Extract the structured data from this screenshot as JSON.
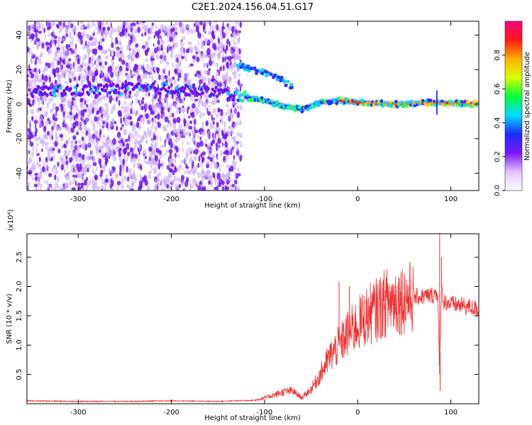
{
  "chart_data": [
    {
      "type": "heatmap",
      "title": "C2E1.2024.156.04.51.G17",
      "xlabel": "Height of straight line (km)",
      "ylabel": "Frequency (Hz)",
      "xlim": [
        -355,
        130
      ],
      "ylim": [
        -50,
        48
      ],
      "x_ticks": [
        -300,
        -200,
        -100,
        0,
        100
      ],
      "y_ticks": [
        -40,
        -20,
        0,
        20,
        40
      ],
      "colorbar": {
        "label": "Normalized spectral amplitude",
        "range": [
          0.0,
          1.0
        ],
        "ticks": [
          "0.0",
          "0.2",
          "0.4",
          "0.6",
          "0.8"
        ],
        "colors": [
          "#ffffff",
          "#e3c2ff",
          "#7a16ff",
          "#1a2cff",
          "#00ddff",
          "#00ff3a",
          "#d8ff00",
          "#ffb000",
          "#ff1a1a",
          "#ff0080"
        ]
      },
      "features": [
        {
          "desc": "broadband scatter",
          "x_range": [
            -355,
            -125
          ],
          "y_range": [
            -50,
            48
          ]
        },
        {
          "desc": "main frequency trace",
          "x": [
            -350,
            -250,
            -200,
            -150,
            -120,
            -100,
            -80,
            -60,
            -40,
            -20,
            0,
            40,
            80,
            130
          ],
          "y": [
            7,
            9,
            9,
            7,
            4,
            2,
            -1,
            -3,
            1,
            2,
            1,
            0,
            1,
            0
          ]
        },
        {
          "desc": "upper branch",
          "x": [
            -130,
            -125,
            -100,
            -85,
            -70
          ],
          "y": [
            22,
            22,
            18,
            15,
            10
          ]
        },
        {
          "desc": "spike",
          "x": 85,
          "y_range": [
            -6,
            8
          ]
        }
      ]
    },
    {
      "type": "line",
      "xlabel": "Height of straight line (km)",
      "ylabel": "SNR (10 * v/v)",
      "y_multiplier": "(x10⁴)",
      "xlim": [
        -355,
        130
      ],
      "ylim": [
        0,
        2.9
      ],
      "x_ticks": [
        -300,
        -200,
        -100,
        0,
        100
      ],
      "y_ticks": [
        0.5,
        1.0,
        1.5,
        2.0,
        2.5
      ],
      "series": [
        {
          "color": "#f03030",
          "x": [
            -355,
            -300,
            -250,
            -200,
            -150,
            -130,
            -110,
            -100,
            -90,
            -80,
            -70,
            -60,
            -50,
            -40,
            -30,
            -20,
            -10,
            0,
            10,
            20,
            30,
            40,
            50,
            60,
            70,
            80,
            86,
            88,
            90,
            92,
            100,
            110,
            120,
            130
          ],
          "y": [
            0.05,
            0.04,
            0.04,
            0.05,
            0.04,
            0.05,
            0.06,
            0.1,
            0.15,
            0.2,
            0.22,
            0.1,
            0.25,
            0.5,
            0.8,
            1.0,
            1.2,
            1.35,
            1.5,
            1.6,
            1.72,
            1.78,
            1.8,
            1.82,
            1.83,
            1.85,
            1.9,
            0.5,
            2.0,
            1.75,
            1.7,
            1.68,
            1.65,
            1.6
          ],
          "spikes": [
            {
              "x": -20,
              "y": 2.08
            },
            {
              "x": -9,
              "y": 2.0
            },
            {
              "x": 88,
              "y": 2.9
            },
            {
              "x": 88.5,
              "y": 0.22
            },
            {
              "x": 90,
              "y": 2.5
            }
          ]
        }
      ]
    }
  ]
}
